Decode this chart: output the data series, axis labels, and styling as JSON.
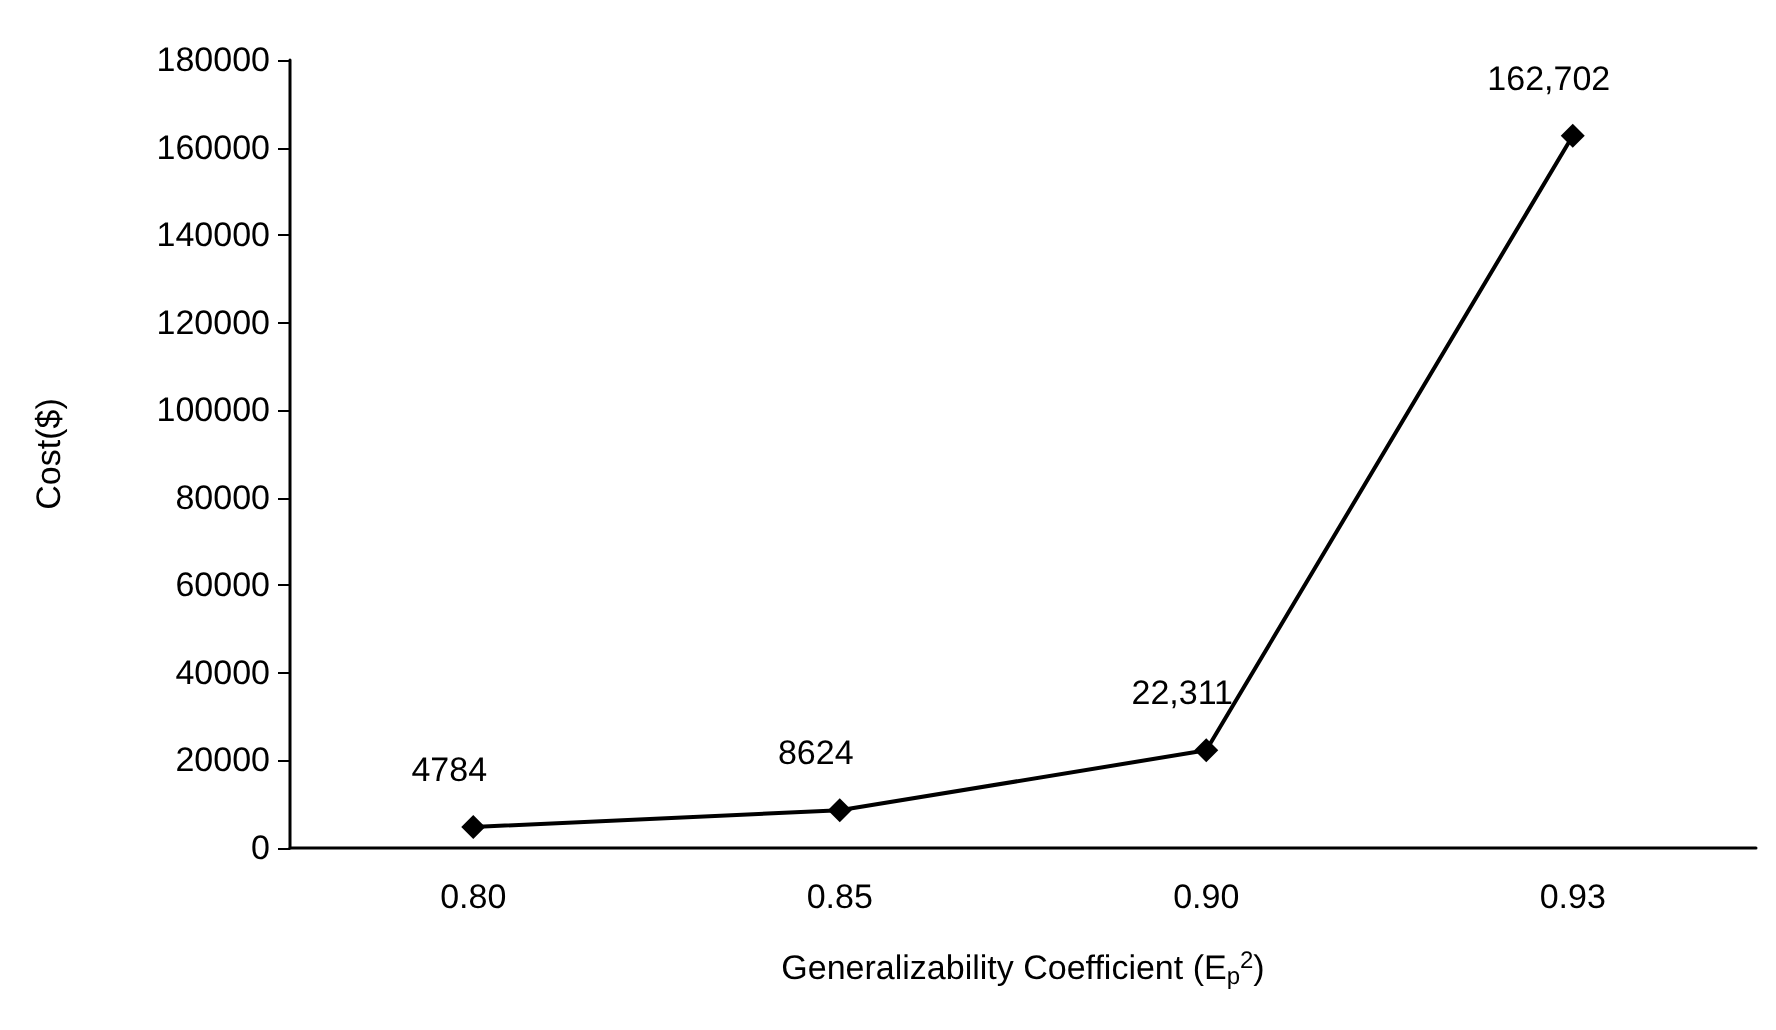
{
  "chart_data": {
    "type": "line",
    "xlabel": "Generalizability Coefficient (E$_{p}$$^{2}$)",
    "ylabel": "Cost($)",
    "categories": [
      "0.80",
      "0.85",
      "0.90",
      "0.93"
    ],
    "series": [
      {
        "color": "#000000",
        "values": [
          4784,
          8624,
          22311,
          162702
        ],
        "value_labels": [
          "4784",
          "8624",
          "22,311",
          "162,702"
        ]
      }
    ],
    "ylim": [
      0,
      180000
    ],
    "yticks": [
      0,
      20000,
      40000,
      60000,
      80000,
      100000,
      120000,
      140000,
      160000,
      180000
    ],
    "grid": false,
    "marker": "diamond",
    "line_style": "solid"
  }
}
